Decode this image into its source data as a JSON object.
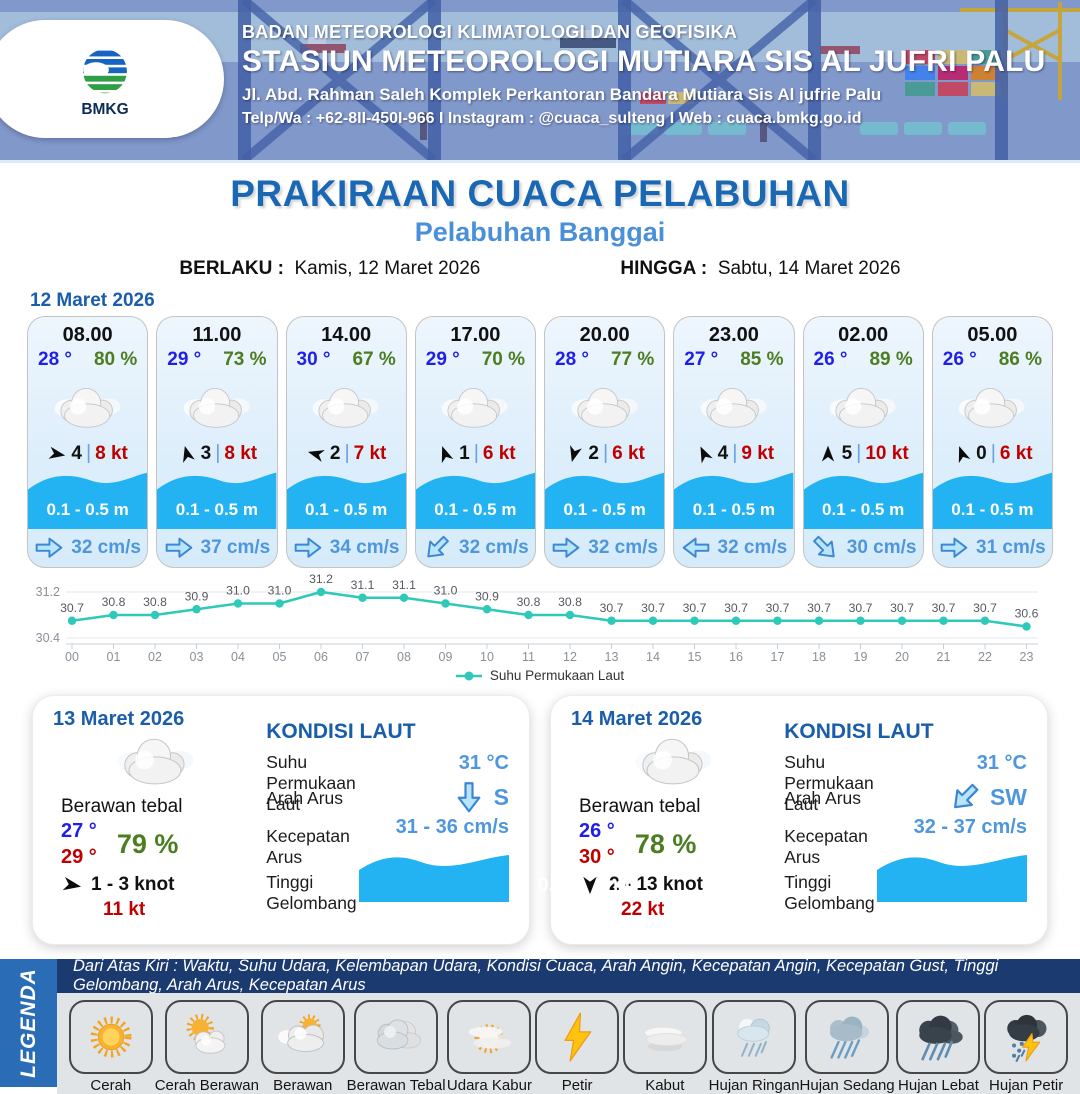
{
  "header": {
    "org": "BADAN METEOROLOGI KLIMATOLOGI DAN GEOFISIKA",
    "station": "STASIUN METEOROLOGI MUTIARA SIS AL JUFRI PALU",
    "address": "Jl. Abd. Rahman Saleh Komplek Perkantoran Bandara Mutiara Sis Al jufrie Palu",
    "contact": "Telp/Wa : +62-8II-450I-966  I  Instagram : @cuaca_sulteng  I  Web : cuaca.bmkg.go.id",
    "logo_text": "BMKG"
  },
  "title": {
    "main": "PRAKIRAAN CUACA PELABUHAN",
    "sub": "Pelabuhan Banggai",
    "berlaku_label": "BERLAKU :",
    "berlaku_value": "Kamis, 12 Maret 2026",
    "hingga_label": "HINGGA :",
    "hingga_value": "Sabtu, 14 Maret 2026"
  },
  "forecast": {
    "date_label": "12 Maret 2026",
    "cards": [
      {
        "time": "08.00",
        "temp": "28 °",
        "humidity": "80 %",
        "weather_icon": "cloud-icon",
        "wind_dir_deg": 100,
        "wind_val": "4",
        "wind_speed": "8 kt",
        "wave": "0.1 - 0.5 m",
        "current_dir_deg": 0,
        "current": "32 cm/s"
      },
      {
        "time": "11.00",
        "temp": "29 °",
        "humidity": "73 %",
        "weather_icon": "cloud-icon",
        "wind_dir_deg": -15,
        "wind_val": "3",
        "wind_speed": "8 kt",
        "wave": "0.1 - 0.5 m",
        "current_dir_deg": 0,
        "current": "37 cm/s"
      },
      {
        "time": "14.00",
        "temp": "30 °",
        "humidity": "67 %",
        "weather_icon": "cloud-icon",
        "wind_dir_deg": -75,
        "wind_val": "2",
        "wind_speed": "7 kt",
        "wave": "0.1 - 0.5 m",
        "current_dir_deg": 0,
        "current": "34 cm/s"
      },
      {
        "time": "17.00",
        "temp": "29 °",
        "humidity": "70 %",
        "weather_icon": "cloud-icon",
        "wind_dir_deg": -20,
        "wind_val": "1",
        "wind_speed": "6 kt",
        "wave": "0.1 - 0.5 m",
        "current_dir_deg": 135,
        "current": "32 cm/s"
      },
      {
        "time": "20.00",
        "temp": "28 °",
        "humidity": "77 %",
        "weather_icon": "cloud-icon",
        "wind_dir_deg": 195,
        "wind_val": "2",
        "wind_speed": "6 kt",
        "wave": "0.1 - 0.5 m",
        "current_dir_deg": 0,
        "current": "32 cm/s"
      },
      {
        "time": "23.00",
        "temp": "27 °",
        "humidity": "85 %",
        "weather_icon": "cloud-icon",
        "wind_dir_deg": -25,
        "wind_val": "4",
        "wind_speed": "9 kt",
        "wave": "0.1 - 0.5 m",
        "current_dir_deg": 180,
        "current": "32 cm/s"
      },
      {
        "time": "02.00",
        "temp": "26 °",
        "humidity": "89 %",
        "weather_icon": "cloud-icon",
        "wind_dir_deg": 0,
        "wind_val": "5",
        "wind_speed": "10 kt",
        "wave": "0.1 - 0.5 m",
        "current_dir_deg": 45,
        "current": "30 cm/s"
      },
      {
        "time": "05.00",
        "temp": "26 °",
        "humidity": "86 %",
        "weather_icon": "cloud-icon",
        "wind_dir_deg": -20,
        "wind_val": "0",
        "wind_speed": "6 kt",
        "wave": "0.1 - 0.5 m",
        "current_dir_deg": 0,
        "current": "31 cm/s"
      }
    ]
  },
  "chart_data": {
    "type": "line",
    "x": [
      "00",
      "01",
      "02",
      "03",
      "04",
      "05",
      "06",
      "07",
      "08",
      "09",
      "10",
      "11",
      "12",
      "13",
      "14",
      "15",
      "16",
      "17",
      "18",
      "19",
      "20",
      "21",
      "22",
      "23"
    ],
    "series": [
      {
        "name": "Suhu Permukaan Laut",
        "values": [
          30.7,
          30.8,
          30.8,
          30.9,
          31.0,
          31.0,
          31.2,
          31.1,
          31.1,
          31.0,
          30.9,
          30.8,
          30.8,
          30.7,
          30.7,
          30.7,
          30.7,
          30.7,
          30.7,
          30.7,
          30.7,
          30.7,
          30.7,
          30.6
        ]
      }
    ],
    "ylim": [
      30.4,
      31.2
    ],
    "yticks": [
      31.2,
      30.4
    ],
    "line_color": "#2ec9b8",
    "grid": true,
    "legend_position": "bottom"
  },
  "day_cards": [
    {
      "date": "13 Maret 2026",
      "weather_icon": "cloud-icon",
      "condition": "Berawan tebal",
      "temp_min": "27 °",
      "temp_max": "29 °",
      "humidity": "79 %",
      "wind_dir_deg": 100,
      "wind_range": "1  - 3 knot",
      "gust": "11 kt",
      "sea": {
        "heading": "KONDISI LAUT",
        "sst_label": "Suhu Permukaan Laut",
        "sst": "31 °C",
        "current_dir_label": "Arah Arus",
        "current_dir_deg": 90,
        "current_dir": "S",
        "current_speed_label": "Kecepatan Arus",
        "current_speed": "31  - 36 cm/s",
        "wave_label": "Tinggi Gelombang",
        "wave": "0.1 - 0.5 m"
      }
    },
    {
      "date": "14 Maret 2026",
      "weather_icon": "cloud-icon",
      "condition": "Berawan tebal",
      "temp_min": "26 °",
      "temp_max": "30 °",
      "humidity": "78 %",
      "wind_dir_deg": 180,
      "wind_range": "2  - 13 knot",
      "gust": "22 kt",
      "sea": {
        "heading": "KONDISI LAUT",
        "sst_label": "Suhu Permukaan Laut",
        "sst": "31 °C",
        "current_dir_label": "Arah Arus",
        "current_dir_deg": 135,
        "current_dir": "SW",
        "current_speed_label": "Kecepatan Arus",
        "current_speed": "32  - 37 cm/s",
        "wave_label": "Tinggi Gelombang",
        "wave": "0.1 - 0.5 m"
      }
    }
  ],
  "legend": {
    "title": "LEGENDA",
    "description": "Dari Atas Kiri : Waktu, Suhu Udara, Kelembapan Udara, Kondisi Cuaca, Arah Angin, Kecepatan Angin, Kecepatan Gust, Tinggi Gelombang, Arah Arus, Kecepatan Arus",
    "items": [
      {
        "label": "Cerah",
        "icon": "sun-icon"
      },
      {
        "label": "Cerah Berawan",
        "icon": "sun-cloud-icon"
      },
      {
        "label": "Berawan",
        "icon": "cloud-sun-icon"
      },
      {
        "label": "Berawan Tebal",
        "icon": "clouds-icon"
      },
      {
        "label": "Udara Kabur",
        "icon": "haze-sun-icon"
      },
      {
        "label": "Petir",
        "icon": "lightning-icon"
      },
      {
        "label": "Kabut",
        "icon": "fog-icon"
      },
      {
        "label": "Hujan Ringan",
        "icon": "light-rain-icon"
      },
      {
        "label": "Hujan Sedang",
        "icon": "moderate-rain-icon"
      },
      {
        "label": "Hujan Lebat",
        "icon": "heavy-rain-icon"
      },
      {
        "label": "Hujan Petir",
        "icon": "thunderstorm-icon"
      }
    ]
  },
  "colors": {
    "primary_blue": "#1a67b3",
    "light_blue": "#4f97dd",
    "temp_blue": "#1f1fe8",
    "humidity_green": "#4c7d21",
    "alert_red": "#c00000",
    "wave_cyan": "#23b3f2",
    "chart_teal": "#2ec9b8",
    "legend_bar_blue": "#2a6cb5",
    "strip_navy": "#1b3a70"
  }
}
